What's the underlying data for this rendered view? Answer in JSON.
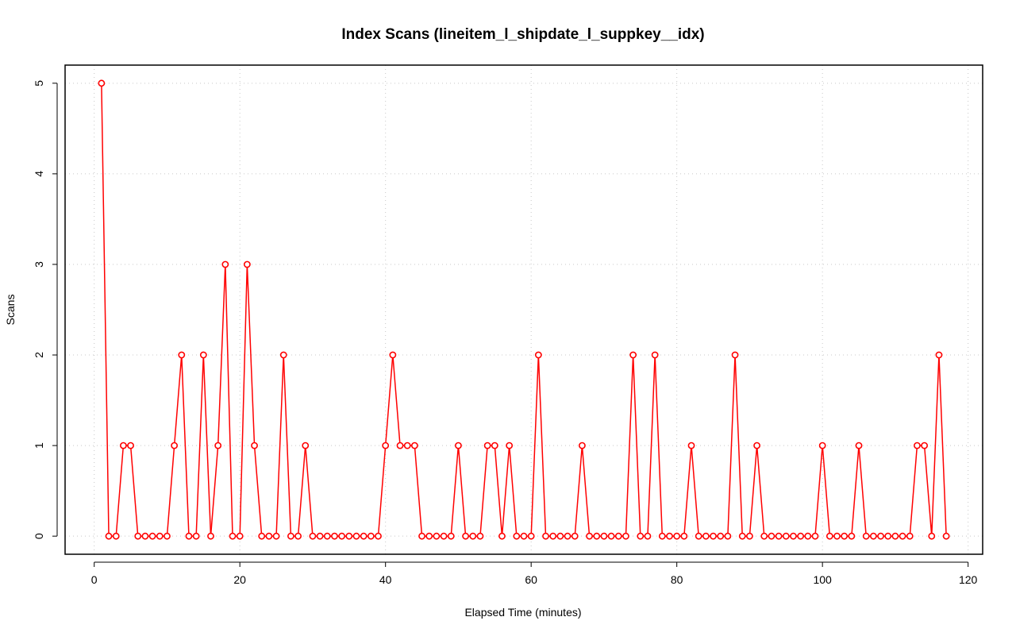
{
  "chart_data": {
    "type": "line",
    "title": "Index Scans (lineitem_l_shipdate_l_suppkey__idx)",
    "xlabel": "Elapsed Time (minutes)",
    "ylabel": "Scans",
    "xlim": [
      -4,
      122
    ],
    "ylim": [
      -0.2,
      5.2
    ],
    "xticks": [
      0,
      20,
      40,
      60,
      80,
      100,
      120
    ],
    "yticks": [
      0,
      1,
      2,
      3,
      4,
      5
    ],
    "grid": true,
    "series": [
      {
        "color": "#ff0000",
        "marker": "open-circle",
        "x": [
          1,
          2,
          3,
          4,
          5,
          6,
          7,
          8,
          9,
          10,
          11,
          12,
          13,
          14,
          15,
          16,
          17,
          18,
          19,
          20,
          21,
          22,
          23,
          24,
          25,
          26,
          27,
          28,
          29,
          30,
          31,
          32,
          33,
          34,
          35,
          36,
          37,
          38,
          39,
          40,
          41,
          42,
          43,
          44,
          45,
          46,
          47,
          48,
          49,
          50,
          51,
          52,
          53,
          54,
          55,
          56,
          57,
          58,
          59,
          60,
          61,
          62,
          63,
          64,
          65,
          66,
          67,
          68,
          69,
          70,
          71,
          72,
          73,
          74,
          75,
          76,
          77,
          78,
          79,
          80,
          81,
          82,
          83,
          84,
          85,
          86,
          87,
          88,
          89,
          90,
          91,
          92,
          93,
          94,
          95,
          96,
          97,
          98,
          99,
          100,
          101,
          102,
          103,
          104,
          105,
          106,
          107,
          108,
          109,
          110,
          111,
          112,
          113,
          114,
          115,
          116,
          117
        ],
        "values": [
          5,
          0,
          0,
          1,
          1,
          0,
          0,
          0,
          0,
          0,
          1,
          2,
          0,
          0,
          2,
          0,
          1,
          3,
          0,
          0,
          3,
          1,
          0,
          0,
          0,
          2,
          0,
          0,
          1,
          0,
          0,
          0,
          0,
          0,
          0,
          0,
          0,
          0,
          0,
          1,
          2,
          1,
          1,
          1,
          0,
          0,
          0,
          0,
          0,
          1,
          0,
          0,
          0,
          1,
          1,
          0,
          1,
          0,
          0,
          0,
          2,
          0,
          0,
          0,
          0,
          0,
          1,
          0,
          0,
          0,
          0,
          0,
          0,
          2,
          0,
          0,
          2,
          0,
          0,
          0,
          0,
          1,
          0,
          0,
          0,
          0,
          0,
          2,
          0,
          0,
          1,
          0,
          0,
          0,
          0,
          0,
          0,
          0,
          0,
          1,
          0,
          0,
          0,
          0,
          1,
          0,
          0,
          0,
          0,
          0,
          0,
          0,
          1,
          1,
          0,
          2,
          0
        ]
      }
    ]
  }
}
